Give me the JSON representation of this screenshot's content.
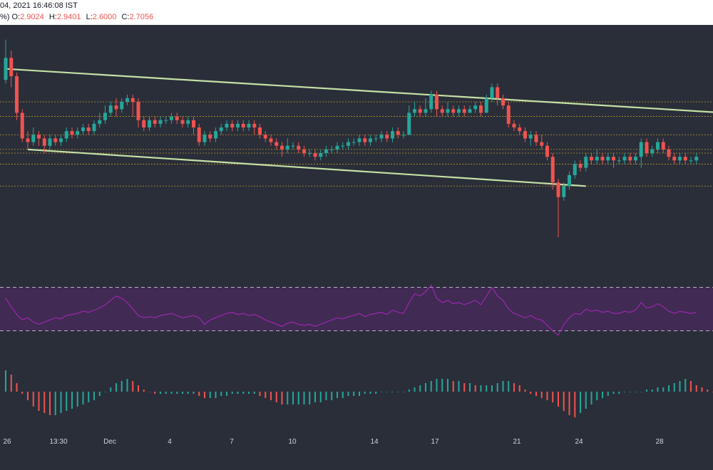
{
  "header": {
    "datetime": "04, 2021 16:46:08 IST",
    "prefix": "%)",
    "ohlc": [
      {
        "key": "O:",
        "value": "2.9024"
      },
      {
        "key": "H:",
        "value": "2.9401"
      },
      {
        "key": "L:",
        "value": "2.6000"
      },
      {
        "key": "C:",
        "value": "2.7056"
      }
    ]
  },
  "colors": {
    "background": "#2a2e39",
    "up": "#26a69a",
    "down": "#ef5350",
    "trendline": "#c5e1a5",
    "level": "#c9a227",
    "rsi_line": "#9c27b0",
    "rsi_band": "#4a2a5e",
    "axis_text": "#d1d4dc"
  },
  "chart_data": {
    "type": "candlestick",
    "panes": [
      "price",
      "rsi",
      "macd_histogram"
    ],
    "x_ticks": [
      "26",
      "13:30",
      "Dec",
      "4",
      "7",
      "10",
      "14",
      "17",
      "21",
      "24",
      "28"
    ],
    "price_candles": [
      [
        2.95,
        3.01,
        3.06,
        2.94
      ],
      [
        3.01,
        2.96,
        3.03,
        2.93
      ],
      [
        2.96,
        2.86,
        2.97,
        2.84
      ],
      [
        2.86,
        2.79,
        2.87,
        2.78
      ],
      [
        2.79,
        2.78,
        2.81,
        2.76
      ],
      [
        2.78,
        2.8,
        2.82,
        2.77
      ],
      [
        2.8,
        2.79,
        2.81,
        2.77
      ],
      [
        2.79,
        2.77,
        2.8,
        2.75
      ],
      [
        2.77,
        2.79,
        2.8,
        2.76
      ],
      [
        2.79,
        2.78,
        2.8,
        2.77
      ],
      [
        2.78,
        2.79,
        2.8,
        2.77
      ],
      [
        2.79,
        2.81,
        2.82,
        2.78
      ],
      [
        2.81,
        2.8,
        2.82,
        2.79
      ],
      [
        2.8,
        2.81,
        2.82,
        2.79
      ],
      [
        2.81,
        2.82,
        2.83,
        2.8
      ],
      [
        2.82,
        2.81,
        2.83,
        2.8
      ],
      [
        2.81,
        2.83,
        2.84,
        2.8
      ],
      [
        2.83,
        2.84,
        2.86,
        2.82
      ],
      [
        2.84,
        2.86,
        2.88,
        2.83
      ],
      [
        2.86,
        2.88,
        2.89,
        2.85
      ],
      [
        2.88,
        2.87,
        2.9,
        2.85
      ],
      [
        2.87,
        2.89,
        2.9,
        2.86
      ],
      [
        2.89,
        2.9,
        2.91,
        2.88
      ],
      [
        2.9,
        2.89,
        2.91,
        2.85
      ],
      [
        2.89,
        2.84,
        2.9,
        2.82
      ],
      [
        2.84,
        2.82,
        2.85,
        2.81
      ],
      [
        2.82,
        2.84,
        2.85,
        2.81
      ],
      [
        2.84,
        2.83,
        2.85,
        2.82
      ],
      [
        2.83,
        2.84,
        2.85,
        2.82
      ],
      [
        2.84,
        2.84,
        2.85,
        2.83
      ],
      [
        2.84,
        2.85,
        2.86,
        2.83
      ],
      [
        2.85,
        2.84,
        2.86,
        2.83
      ],
      [
        2.84,
        2.83,
        2.85,
        2.82
      ],
      [
        2.83,
        2.84,
        2.85,
        2.82
      ],
      [
        2.84,
        2.82,
        2.85,
        2.8
      ],
      [
        2.82,
        2.78,
        2.83,
        2.77
      ],
      [
        2.78,
        2.8,
        2.81,
        2.77
      ],
      [
        2.8,
        2.79,
        2.81,
        2.78
      ],
      [
        2.79,
        2.81,
        2.82,
        2.78
      ],
      [
        2.81,
        2.82,
        2.83,
        2.8
      ],
      [
        2.82,
        2.83,
        2.84,
        2.81
      ],
      [
        2.83,
        2.82,
        2.84,
        2.81
      ],
      [
        2.82,
        2.83,
        2.84,
        2.81
      ],
      [
        2.83,
        2.82,
        2.84,
        2.81
      ],
      [
        2.82,
        2.83,
        2.84,
        2.81
      ],
      [
        2.83,
        2.82,
        2.84,
        2.8
      ],
      [
        2.82,
        2.8,
        2.83,
        2.79
      ],
      [
        2.8,
        2.79,
        2.81,
        2.78
      ],
      [
        2.79,
        2.78,
        2.8,
        2.77
      ],
      [
        2.78,
        2.77,
        2.79,
        2.76
      ],
      [
        2.77,
        2.76,
        2.78,
        2.74
      ],
      [
        2.76,
        2.77,
        2.79,
        2.75
      ],
      [
        2.77,
        2.77,
        2.78,
        2.76
      ],
      [
        2.77,
        2.76,
        2.78,
        2.75
      ],
      [
        2.76,
        2.75,
        2.77,
        2.74
      ],
      [
        2.75,
        2.75,
        2.76,
        2.74
      ],
      [
        2.75,
        2.74,
        2.76,
        2.73
      ],
      [
        2.74,
        2.75,
        2.76,
        2.73
      ],
      [
        2.75,
        2.76,
        2.77,
        2.74
      ],
      [
        2.76,
        2.76,
        2.77,
        2.75
      ],
      [
        2.76,
        2.77,
        2.78,
        2.75
      ],
      [
        2.77,
        2.77,
        2.78,
        2.76
      ],
      [
        2.77,
        2.78,
        2.79,
        2.76
      ],
      [
        2.78,
        2.78,
        2.79,
        2.77
      ],
      [
        2.78,
        2.79,
        2.8,
        2.77
      ],
      [
        2.79,
        2.78,
        2.8,
        2.77
      ],
      [
        2.78,
        2.79,
        2.8,
        2.77
      ],
      [
        2.79,
        2.79,
        2.8,
        2.78
      ],
      [
        2.79,
        2.8,
        2.81,
        2.78
      ],
      [
        2.8,
        2.79,
        2.81,
        2.78
      ],
      [
        2.79,
        2.81,
        2.82,
        2.78
      ],
      [
        2.81,
        2.8,
        2.82,
        2.79
      ],
      [
        2.8,
        2.8,
        2.81,
        2.79
      ],
      [
        2.8,
        2.86,
        2.88,
        2.8
      ],
      [
        2.86,
        2.87,
        2.89,
        2.85
      ],
      [
        2.87,
        2.86,
        2.88,
        2.85
      ],
      [
        2.86,
        2.87,
        2.9,
        2.85
      ],
      [
        2.87,
        2.91,
        2.92,
        2.86
      ],
      [
        2.91,
        2.87,
        2.92,
        2.85
      ],
      [
        2.87,
        2.86,
        2.88,
        2.85
      ],
      [
        2.86,
        2.87,
        2.89,
        2.85
      ],
      [
        2.87,
        2.86,
        2.88,
        2.85
      ],
      [
        2.86,
        2.87,
        2.88,
        2.85
      ],
      [
        2.87,
        2.86,
        2.88,
        2.85
      ],
      [
        2.86,
        2.87,
        2.88,
        2.86
      ],
      [
        2.87,
        2.88,
        2.89,
        2.86
      ],
      [
        2.88,
        2.86,
        2.89,
        2.85
      ],
      [
        2.86,
        2.9,
        2.91,
        2.86
      ],
      [
        2.9,
        2.93,
        2.94,
        2.89
      ],
      [
        2.93,
        2.9,
        2.94,
        2.88
      ],
      [
        2.9,
        2.88,
        2.91,
        2.87
      ],
      [
        2.88,
        2.83,
        2.89,
        2.82
      ],
      [
        2.83,
        2.82,
        2.84,
        2.81
      ],
      [
        2.82,
        2.81,
        2.83,
        2.8
      ],
      [
        2.81,
        2.79,
        2.82,
        2.78
      ],
      [
        2.79,
        2.8,
        2.81,
        2.77
      ],
      [
        2.8,
        2.78,
        2.81,
        2.77
      ],
      [
        2.78,
        2.77,
        2.8,
        2.76
      ],
      [
        2.77,
        2.74,
        2.78,
        2.73
      ],
      [
        2.74,
        2.67,
        2.75,
        2.65
      ],
      [
        2.67,
        2.63,
        2.68,
        2.52
      ],
      [
        2.63,
        2.66,
        2.67,
        2.62
      ],
      [
        2.66,
        2.69,
        2.7,
        2.65
      ],
      [
        2.69,
        2.72,
        2.73,
        2.68
      ],
      [
        2.72,
        2.71,
        2.73,
        2.7
      ],
      [
        2.71,
        2.74,
        2.75,
        2.7
      ],
      [
        2.74,
        2.73,
        2.75,
        2.72
      ],
      [
        2.73,
        2.74,
        2.76,
        2.72
      ],
      [
        2.74,
        2.73,
        2.75,
        2.72
      ],
      [
        2.73,
        2.74,
        2.75,
        2.72
      ],
      [
        2.74,
        2.73,
        2.75,
        2.71
      ],
      [
        2.73,
        2.73,
        2.74,
        2.72
      ],
      [
        2.73,
        2.74,
        2.75,
        2.72
      ],
      [
        2.74,
        2.73,
        2.75,
        2.72
      ],
      [
        2.73,
        2.74,
        2.75,
        2.72
      ],
      [
        2.74,
        2.78,
        2.79,
        2.71
      ],
      [
        2.78,
        2.75,
        2.79,
        2.74
      ],
      [
        2.75,
        2.76,
        2.77,
        2.74
      ],
      [
        2.76,
        2.78,
        2.79,
        2.75
      ],
      [
        2.78,
        2.76,
        2.79,
        2.75
      ],
      [
        2.76,
        2.74,
        2.77,
        2.73
      ],
      [
        2.74,
        2.73,
        2.75,
        2.72
      ],
      [
        2.73,
        2.74,
        2.75,
        2.72
      ],
      [
        2.74,
        2.73,
        2.75,
        2.72
      ],
      [
        2.73,
        2.73,
        2.74,
        2.72
      ],
      [
        2.73,
        2.74,
        2.75,
        2.72
      ]
    ],
    "levels": [
      2.89,
      2.85,
      2.8,
      2.76,
      2.75,
      2.72,
      2.66
    ],
    "trendlines": [
      {
        "from": [
          0,
          2.98
        ],
        "to": [
          130,
          2.86
        ]
      },
      {
        "from": [
          4,
          2.76
        ],
        "to": [
          105,
          2.66
        ]
      }
    ],
    "rsi": {
      "upper": 70,
      "lower": 30,
      "ylim": [
        10,
        90
      ],
      "values": [
        60,
        52,
        45,
        40,
        42,
        38,
        36,
        38,
        40,
        42,
        41,
        44,
        45,
        46,
        48,
        47,
        49,
        51,
        54,
        58,
        62,
        60,
        56,
        50,
        44,
        42,
        43,
        42,
        44,
        45,
        46,
        44,
        42,
        43,
        44,
        42,
        36,
        40,
        42,
        44,
        46,
        47,
        45,
        46,
        44,
        45,
        43,
        40,
        38,
        36,
        34,
        37,
        38,
        36,
        35,
        36,
        34,
        36,
        38,
        40,
        42,
        41,
        43,
        44,
        46,
        43,
        45,
        46,
        47,
        45,
        49,
        47,
        46,
        56,
        64,
        62,
        66,
        72,
        60,
        56,
        58,
        55,
        56,
        54,
        56,
        58,
        54,
        62,
        70,
        62,
        58,
        50,
        46,
        44,
        42,
        44,
        41,
        40,
        35,
        30,
        26,
        36,
        42,
        46,
        45,
        50,
        48,
        49,
        47,
        48,
        46,
        46,
        48,
        47,
        49,
        56,
        51,
        52,
        55,
        52,
        48,
        46,
        48,
        47,
        46,
        47
      ]
    },
    "macd_histogram": [
      0.01,
      0.008,
      0.004,
      -0.001,
      -0.004,
      -0.007,
      -0.009,
      -0.01,
      -0.011,
      -0.011,
      -0.01,
      -0.009,
      -0.008,
      -0.007,
      -0.006,
      -0.005,
      -0.004,
      -0.002,
      0.0,
      0.002,
      0.004,
      0.005,
      0.006,
      0.005,
      0.003,
      0.001,
      0.0,
      -0.001,
      -0.001,
      -0.001,
      -0.001,
      -0.001,
      -0.001,
      -0.001,
      -0.001,
      -0.002,
      -0.003,
      -0.003,
      -0.003,
      -0.002,
      -0.002,
      -0.001,
      -0.001,
      -0.001,
      -0.001,
      -0.001,
      -0.002,
      -0.003,
      -0.004,
      -0.005,
      -0.006,
      -0.006,
      -0.006,
      -0.006,
      -0.006,
      -0.006,
      -0.005,
      -0.005,
      -0.004,
      -0.004,
      -0.003,
      -0.003,
      -0.002,
      -0.002,
      -0.002,
      -0.001,
      -0.001,
      -0.001,
      0.0,
      0.0,
      0.0,
      0.0,
      0.0,
      0.001,
      0.002,
      0.003,
      0.004,
      0.005,
      0.006,
      0.006,
      0.006,
      0.005,
      0.005,
      0.004,
      0.004,
      0.003,
      0.003,
      0.003,
      0.003,
      0.004,
      0.005,
      0.005,
      0.004,
      0.003,
      0.001,
      -0.001,
      -0.002,
      -0.003,
      -0.004,
      -0.005,
      -0.007,
      -0.009,
      -0.011,
      -0.012,
      -0.01,
      -0.008,
      -0.006,
      -0.004,
      -0.003,
      -0.002,
      -0.001,
      -0.001,
      0.0,
      0.0,
      0.0,
      0.0,
      0.001,
      0.001,
      0.002,
      0.002,
      0.003,
      0.004,
      0.005,
      0.006,
      0.005,
      0.003,
      0.002,
      0.001,
      0.0,
      -0.001,
      -0.002
    ]
  }
}
